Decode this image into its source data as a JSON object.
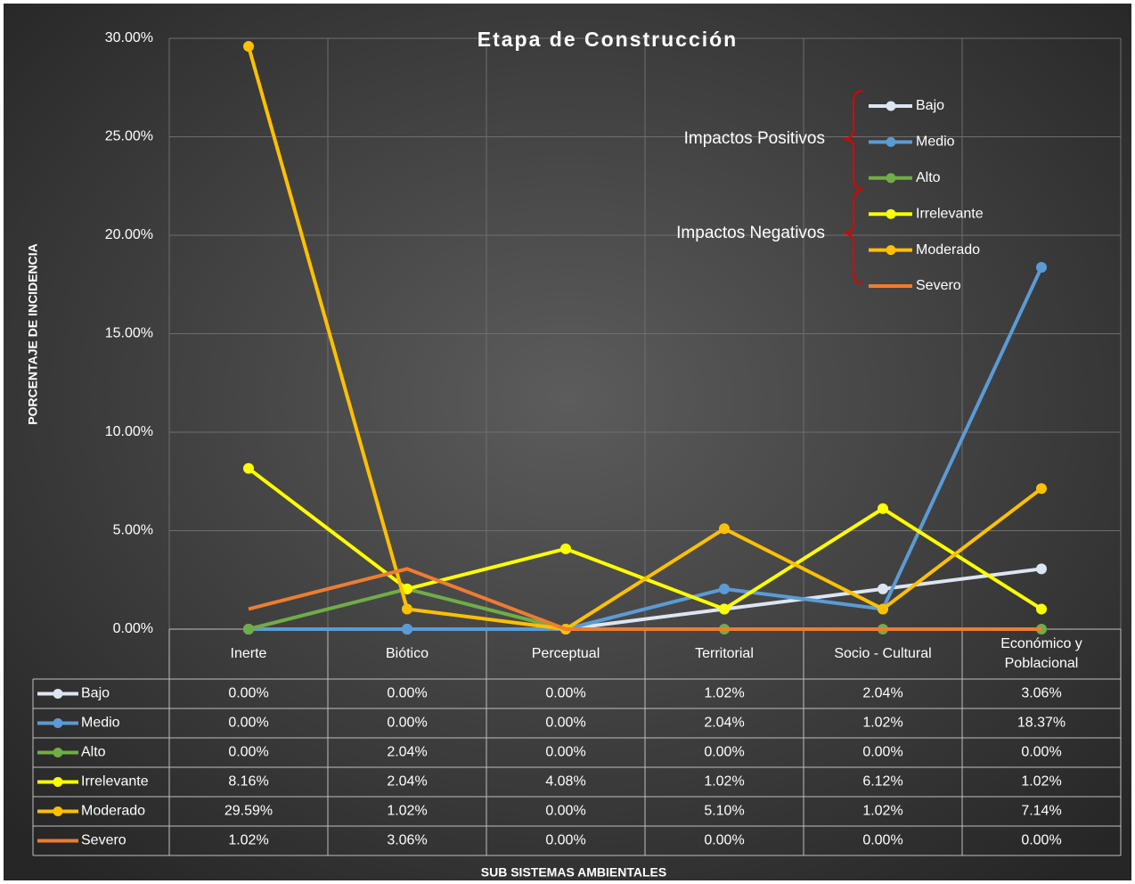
{
  "chart_data": {
    "type": "line",
    "title": "Etapa de Construcción",
    "y_label": "PORCENTAJE DE INCIDENCIA",
    "x_label": "SUB SISTEMAS AMBIENTALES",
    "categories": [
      "Inerte",
      "Biótico",
      "Perceptual",
      "Territorial",
      "Socio - Cultural",
      "Económico y Poblacional"
    ],
    "ylim": [
      0,
      30
    ],
    "yticks": [
      {
        "value": 0,
        "label": "0.00%"
      },
      {
        "value": 5,
        "label": "5.00%"
      },
      {
        "value": 10,
        "label": "10.00%"
      },
      {
        "value": 15,
        "label": "15.00%"
      },
      {
        "value": 20,
        "label": "20.00%"
      },
      {
        "value": 25,
        "label": "25.00%"
      },
      {
        "value": 30,
        "label": "30.00%"
      }
    ],
    "grid": true,
    "legend": "upper right",
    "annotations": [
      "Impactos Positivos",
      "Impactos Negativos"
    ],
    "series": [
      {
        "name": "Bajo",
        "color": "#dce6f2",
        "marker": true,
        "values": [
          0,
          0,
          0,
          1.02,
          2.04,
          3.06
        ],
        "value_labels": [
          "0.00%",
          "0.00%",
          "0.00%",
          "1.02%",
          "2.04%",
          "3.06%"
        ]
      },
      {
        "name": "Medio",
        "color": "#5b9bd5",
        "marker": true,
        "values": [
          0,
          0,
          0,
          2.04,
          1.02,
          18.37
        ],
        "value_labels": [
          "0.00%",
          "0.00%",
          "0.00%",
          "2.04%",
          "1.02%",
          "18.37%"
        ]
      },
      {
        "name": "Alto",
        "color": "#70ad47",
        "marker": true,
        "values": [
          0,
          2.04,
          0,
          0,
          0,
          0
        ],
        "value_labels": [
          "0.00%",
          "2.04%",
          "0.00%",
          "0.00%",
          "0.00%",
          "0.00%"
        ]
      },
      {
        "name": "Irrelevante",
        "color": "#ffff00",
        "marker": true,
        "values": [
          8.16,
          2.04,
          4.08,
          1.02,
          6.12,
          1.02
        ],
        "value_labels": [
          "8.16%",
          "2.04%",
          "4.08%",
          "1.02%",
          "6.12%",
          "1.02%"
        ]
      },
      {
        "name": "Moderado",
        "color": "#ffc000",
        "marker": true,
        "values": [
          29.59,
          1.02,
          0,
          5.1,
          1.02,
          7.14
        ],
        "value_labels": [
          "29.59%",
          "1.02%",
          "0.00%",
          "5.10%",
          "1.02%",
          "7.14%"
        ]
      },
      {
        "name": "Severo",
        "color": "#ed7d31",
        "marker": false,
        "values": [
          1.02,
          3.06,
          0,
          0,
          0,
          0
        ],
        "value_labels": [
          "1.02%",
          "3.06%",
          "0.00%",
          "0.00%",
          "0.00%",
          "0.00%"
        ]
      }
    ]
  }
}
